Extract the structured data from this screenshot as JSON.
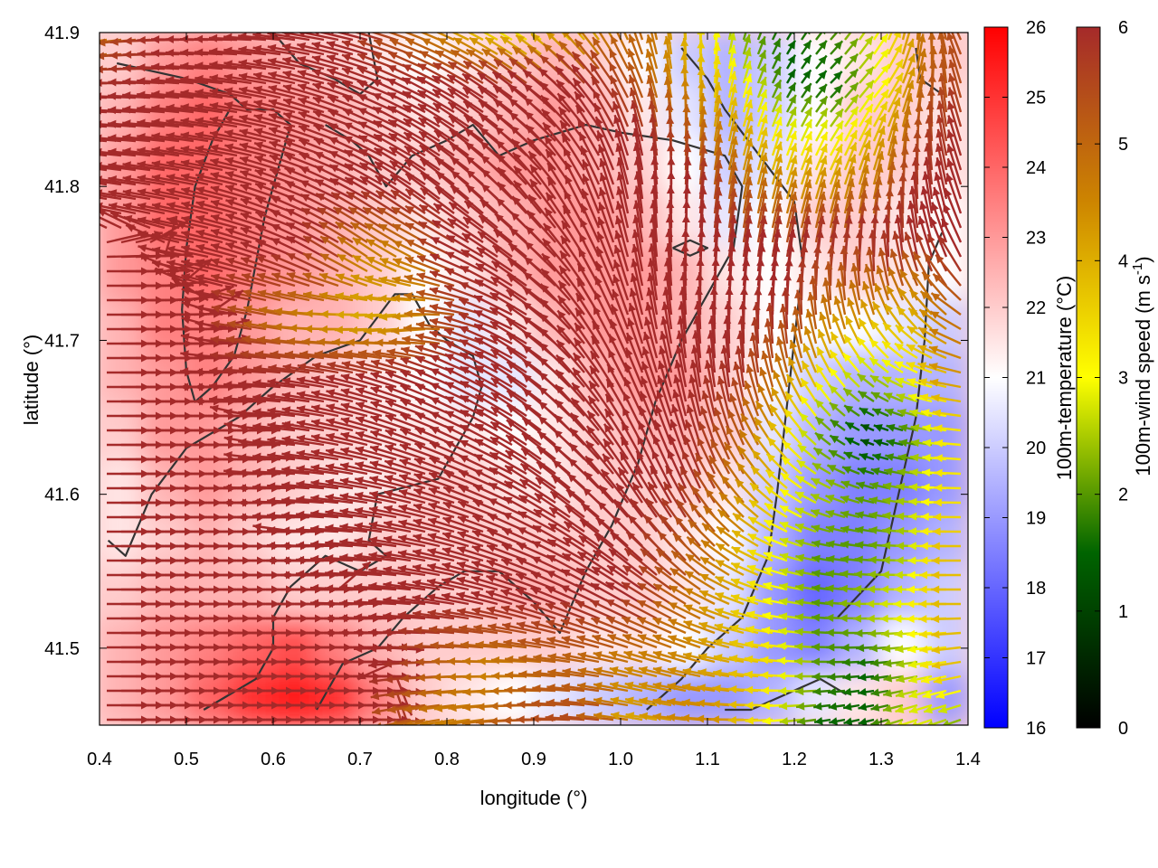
{
  "chart_data": {
    "type": "heatmap",
    "title": "",
    "xlabel": "longitude (°)",
    "ylabel": "latitude (°)",
    "xlim": [
      0.4,
      1.4
    ],
    "ylim": [
      41.45,
      41.9
    ],
    "xticks": [
      "0.4",
      "0.5",
      "0.6",
      "0.7",
      "0.8",
      "0.9",
      "1.0",
      "1.1",
      "1.2",
      "1.3",
      "1.4"
    ],
    "yticks": [
      "41.5",
      "41.6",
      "41.7",
      "41.8",
      "41.9"
    ],
    "grid": false,
    "temperature_colorbar": {
      "label": "100m-temperature (°C)",
      "range": [
        16,
        26
      ],
      "ticks": [
        "16",
        "17",
        "18",
        "19",
        "20",
        "21",
        "22",
        "23",
        "24",
        "25",
        "26"
      ],
      "colors": [
        "#0000ff",
        "#ffffff",
        "#ff0000"
      ]
    },
    "wind_colorbar": {
      "label_main": "100m-wind speed (m s",
      "label_sup": "-1",
      "label_end": ")",
      "range": [
        0,
        6
      ],
      "ticks": [
        "0",
        "1",
        "2",
        "3",
        "4",
        "5",
        "6"
      ],
      "colors": [
        "#000000",
        "#006400",
        "#ffff00",
        "#cd8500",
        "#a52a2a"
      ]
    },
    "temperature_field": [
      [
        22,
        23,
        23.5,
        23,
        22.5,
        22,
        21.5,
        21,
        21.5,
        22,
        22.5,
        22,
        21,
        20,
        19.5,
        20,
        21,
        21.5,
        22,
        22
      ],
      [
        22.5,
        23.5,
        24,
        23.5,
        23,
        22.5,
        22,
        21.5,
        22,
        22.5,
        23,
        22.5,
        21.5,
        20.5,
        19.5,
        20,
        21,
        22,
        22,
        21.5
      ],
      [
        23,
        24,
        24,
        23.5,
        23,
        22.5,
        22,
        22,
        22.5,
        23,
        23,
        22.5,
        22,
        21,
        20,
        20.5,
        21.5,
        22,
        22,
        21.5
      ],
      [
        23,
        24,
        24,
        23.5,
        23,
        22.5,
        22,
        21.5,
        22,
        22.5,
        23,
        23,
        22.5,
        21.5,
        20.5,
        21,
        22,
        22,
        21.5,
        21
      ],
      [
        23,
        23.5,
        24,
        23.5,
        23,
        22.5,
        22,
        21,
        21.5,
        22.5,
        23,
        23,
        23,
        22.5,
        21.5,
        21,
        21.5,
        22,
        21.5,
        21
      ],
      [
        22.5,
        23.5,
        23.5,
        23,
        22.5,
        22.5,
        22,
        21,
        20.5,
        21.5,
        22.5,
        23,
        23,
        22.5,
        22,
        21,
        21,
        21,
        20.5,
        20
      ],
      [
        22.5,
        23,
        23.5,
        23,
        22.5,
        22,
        21.5,
        21,
        20.5,
        20.5,
        21.5,
        22.5,
        23,
        23,
        22,
        21,
        20,
        19.5,
        19.5,
        19.5
      ],
      [
        22,
        23,
        23,
        22.5,
        22,
        22,
        21.5,
        21.5,
        21.5,
        21,
        21.5,
        22,
        22.5,
        22.5,
        22,
        20.5,
        19.5,
        19,
        19,
        19
      ],
      [
        21.5,
        22.5,
        23,
        22.5,
        22,
        21.5,
        21.5,
        22,
        22,
        21.5,
        21.5,
        22,
        22,
        22,
        21.5,
        20,
        19,
        18.5,
        18.5,
        19
      ],
      [
        21.5,
        22,
        22.5,
        22,
        21.5,
        21.5,
        22,
        22,
        22,
        22,
        22,
        22,
        22,
        21.5,
        21,
        19.5,
        18.5,
        18.5,
        19,
        19.5
      ],
      [
        22,
        22.5,
        22.5,
        22.5,
        22,
        22,
        22,
        22,
        22,
        22.5,
        22.5,
        22,
        22,
        21.5,
        20.5,
        19,
        18,
        18.5,
        19.5,
        20
      ],
      [
        22.5,
        23,
        23.5,
        24,
        24.5,
        23.5,
        22.5,
        22,
        22,
        22,
        22,
        21.5,
        21.5,
        21,
        20,
        19,
        18.5,
        19.5,
        21,
        20
      ],
      [
        22.5,
        23,
        24,
        25,
        25.5,
        25,
        23.5,
        22,
        21.5,
        21,
        20.5,
        20,
        19.5,
        19,
        19,
        19.5,
        20.5,
        21.5,
        22,
        19
      ]
    ],
    "contours": [
      [
        [
          0.42,
          41.88
        ],
        [
          0.5,
          41.87
        ],
        [
          0.55,
          41.86
        ],
        [
          0.57,
          41.85
        ],
        [
          0.6,
          41.85
        ],
        [
          0.62,
          41.84
        ],
        [
          0.61,
          41.82
        ],
        [
          0.6,
          41.8
        ],
        [
          0.59,
          41.78
        ],
        [
          0.58,
          41.75
        ],
        [
          0.57,
          41.72
        ],
        [
          0.555,
          41.69
        ],
        [
          0.53,
          41.67
        ],
        [
          0.51,
          41.66
        ],
        [
          0.5,
          41.68
        ],
        [
          0.495,
          41.72
        ],
        [
          0.5,
          41.76
        ],
        [
          0.51,
          41.8
        ],
        [
          0.53,
          41.83
        ],
        [
          0.55,
          41.85
        ]
      ],
      [
        [
          0.41,
          41.57
        ],
        [
          0.43,
          41.56
        ],
        [
          0.46,
          41.6
        ],
        [
          0.5,
          41.63
        ],
        [
          0.56,
          41.65
        ],
        [
          0.6,
          41.67
        ],
        [
          0.65,
          41.69
        ],
        [
          0.7,
          41.7
        ],
        [
          0.74,
          41.73
        ],
        [
          0.76,
          41.73
        ],
        [
          0.78,
          41.71
        ],
        [
          0.8,
          41.7
        ],
        [
          0.83,
          41.69
        ],
        [
          0.84,
          41.67
        ],
        [
          0.83,
          41.65
        ],
        [
          0.81,
          41.63
        ],
        [
          0.79,
          41.61
        ],
        [
          0.72,
          41.6
        ],
        [
          0.71,
          41.57
        ],
        [
          0.73,
          41.56
        ],
        [
          0.7,
          41.55
        ],
        [
          0.66,
          41.56
        ],
        [
          0.62,
          41.54
        ],
        [
          0.6,
          41.52
        ],
        [
          0.6,
          41.5
        ],
        [
          0.58,
          41.48
        ],
        [
          0.55,
          41.47
        ],
        [
          0.52,
          41.46
        ]
      ],
      [
        [
          0.6,
          41.9
        ],
        [
          0.63,
          41.88
        ],
        [
          0.67,
          41.87
        ],
        [
          0.7,
          41.86
        ],
        [
          0.72,
          41.87
        ],
        [
          0.71,
          41.9
        ]
      ],
      [
        [
          0.65,
          41.46
        ],
        [
          0.68,
          41.49
        ],
        [
          0.72,
          41.5
        ],
        [
          0.75,
          41.52
        ],
        [
          0.79,
          41.54
        ],
        [
          0.82,
          41.55
        ],
        [
          0.86,
          41.55
        ],
        [
          0.9,
          41.53
        ],
        [
          0.93,
          41.51
        ],
        [
          0.96,
          41.55
        ],
        [
          0.99,
          41.58
        ],
        [
          1.02,
          41.62
        ],
        [
          1.04,
          41.66
        ],
        [
          1.07,
          41.7
        ],
        [
          1.1,
          41.73
        ],
        [
          1.13,
          41.76
        ],
        [
          1.14,
          41.8
        ],
        [
          1.12,
          41.82
        ],
        [
          1.06,
          41.83
        ],
        [
          1.0,
          41.835
        ],
        [
          0.96,
          41.84
        ],
        [
          0.9,
          41.83
        ],
        [
          0.86,
          41.82
        ],
        [
          0.83,
          41.84
        ],
        [
          0.8,
          41.83
        ],
        [
          0.76,
          41.82
        ],
        [
          0.73,
          41.8
        ],
        [
          0.71,
          41.82
        ],
        [
          0.69,
          41.83
        ],
        [
          0.66,
          41.84
        ]
      ],
      [
        [
          1.06,
          41.76
        ],
        [
          1.08,
          41.765
        ],
        [
          1.1,
          41.76
        ],
        [
          1.08,
          41.755
        ],
        [
          1.06,
          41.76
        ]
      ],
      [
        [
          1.03,
          41.46
        ],
        [
          1.07,
          41.48
        ],
        [
          1.1,
          41.5
        ],
        [
          1.14,
          41.52
        ],
        [
          1.17,
          41.56
        ],
        [
          1.18,
          41.6
        ],
        [
          1.19,
          41.65
        ],
        [
          1.2,
          41.7
        ],
        [
          1.21,
          41.75
        ],
        [
          1.2,
          41.79
        ],
        [
          1.16,
          41.82
        ],
        [
          1.12,
          41.85
        ],
        [
          1.1,
          41.87
        ],
        [
          1.07,
          41.89
        ]
      ],
      [
        [
          1.26,
          41.47
        ],
        [
          1.23,
          41.48
        ],
        [
          1.19,
          41.47
        ],
        [
          1.15,
          41.46
        ],
        [
          1.12,
          41.46
        ]
      ],
      [
        [
          1.25,
          41.52
        ],
        [
          1.3,
          41.55
        ],
        [
          1.32,
          41.6
        ],
        [
          1.34,
          41.65
        ],
        [
          1.35,
          41.7
        ],
        [
          1.355,
          41.75
        ],
        [
          1.37,
          41.77
        ]
      ],
      [
        [
          1.34,
          41.89
        ],
        [
          1.345,
          41.87
        ],
        [
          1.37,
          41.86
        ]
      ]
    ],
    "wind_field": {
      "speed": [
        [
          4.5,
          5.5,
          6,
          6,
          6,
          6,
          6,
          5,
          4,
          3,
          3,
          4,
          5,
          3.5,
          2,
          1.5,
          2,
          3,
          5,
          5.5
        ],
        [
          6,
          6,
          6,
          6,
          6,
          6,
          6,
          6,
          6,
          6,
          6,
          6,
          5,
          4,
          3,
          1.5,
          1.5,
          3,
          5,
          5.5
        ],
        [
          6,
          6,
          6,
          6,
          6,
          6,
          6,
          6,
          6,
          6,
          6,
          6,
          6,
          5,
          4,
          3,
          3,
          4,
          5.5,
          6
        ],
        [
          6,
          6,
          6,
          6,
          6,
          6,
          6,
          6,
          6,
          6,
          6,
          6,
          6,
          6,
          5,
          4.5,
          4.5,
          5,
          6,
          6
        ],
        [
          6,
          6,
          6,
          6,
          6,
          6,
          4.5,
          4.5,
          6,
          6,
          6,
          6,
          6,
          6,
          6,
          6,
          6,
          6,
          6,
          6
        ],
        [
          6,
          6,
          6,
          6,
          5,
          4.5,
          4,
          4.2,
          5.5,
          6,
          6,
          6,
          6,
          6,
          6,
          6,
          5,
          4.5,
          4,
          5
        ],
        [
          6,
          6,
          6,
          6,
          6,
          6,
          6,
          6,
          6,
          6,
          6,
          6,
          6,
          6,
          6,
          5,
          3.5,
          2.5,
          3,
          4.5
        ],
        [
          6,
          6,
          6,
          6,
          6,
          6,
          6,
          6,
          6,
          6,
          6,
          6,
          6,
          6,
          5.5,
          4,
          2,
          1,
          2,
          3.5
        ],
        [
          6,
          6,
          6,
          6,
          6,
          6,
          6,
          6,
          6,
          6,
          6,
          6,
          6,
          6,
          5,
          3.5,
          2.5,
          2,
          2.5,
          3.5
        ],
        [
          6,
          6,
          6,
          6,
          6,
          6,
          6,
          6,
          6,
          6,
          6,
          6,
          6,
          5.5,
          4.5,
          3,
          2,
          2,
          2.5,
          4
        ],
        [
          6,
          6,
          6,
          6,
          6,
          6,
          6,
          6,
          6,
          6,
          6,
          6,
          6,
          5,
          4,
          3,
          2,
          2.5,
          3,
          4
        ],
        [
          6,
          6,
          6,
          6,
          6,
          6,
          6,
          6,
          5,
          4.5,
          5,
          5,
          4.5,
          4.5,
          4,
          3.5,
          2,
          1.5,
          2.5,
          4
        ],
        [
          6,
          6,
          6,
          6,
          6,
          6,
          6,
          5,
          4.5,
          5,
          5.5,
          5.5,
          4,
          4.5,
          4.5,
          3,
          1.5,
          1.5,
          3,
          2
        ]
      ],
      "direction_deg": [
        [
          170,
          175,
          180,
          180,
          185,
          190,
          195,
          200,
          205,
          210,
          220,
          235,
          255,
          270,
          285,
          300,
          310,
          300,
          270,
          240
        ],
        [
          180,
          182,
          185,
          188,
          192,
          196,
          200,
          205,
          210,
          215,
          220,
          230,
          250,
          270,
          285,
          300,
          315,
          310,
          280,
          250
        ],
        [
          185,
          185,
          188,
          190,
          195,
          200,
          205,
          210,
          215,
          220,
          225,
          240,
          260,
          275,
          285,
          290,
          300,
          290,
          270,
          250
        ],
        [
          190,
          190,
          192,
          195,
          200,
          205,
          210,
          215,
          220,
          225,
          235,
          250,
          265,
          275,
          280,
          285,
          285,
          280,
          265,
          250
        ],
        [
          0,
          0,
          190,
          195,
          200,
          210,
          215,
          205,
          205,
          215,
          225,
          245,
          262,
          272,
          278,
          280,
          278,
          270,
          255,
          240
        ],
        [
          0,
          0,
          0,
          190,
          190,
          180,
          175,
          170,
          190,
          205,
          220,
          240,
          258,
          268,
          272,
          270,
          260,
          250,
          230,
          210
        ],
        [
          0,
          0,
          0,
          180,
          185,
          190,
          195,
          200,
          205,
          210,
          220,
          235,
          250,
          262,
          265,
          255,
          240,
          220,
          200,
          190
        ],
        [
          0,
          0,
          0,
          0,
          185,
          190,
          195,
          200,
          205,
          210,
          220,
          230,
          245,
          255,
          250,
          235,
          220,
          200,
          190,
          185
        ],
        [
          0,
          0,
          0,
          0,
          180,
          185,
          190,
          195,
          200,
          205,
          215,
          225,
          240,
          245,
          235,
          220,
          205,
          195,
          185,
          180
        ],
        [
          0,
          0,
          0,
          0,
          0,
          180,
          185,
          190,
          195,
          200,
          205,
          215,
          225,
          230,
          215,
          200,
          190,
          185,
          180,
          180
        ],
        [
          0,
          0,
          0,
          0,
          0,
          0,
          180,
          185,
          190,
          195,
          200,
          205,
          210,
          210,
          200,
          190,
          185,
          180,
          180,
          180
        ],
        [
          0,
          0,
          0,
          0,
          0,
          0,
          0,
          175,
          180,
          180,
          185,
          190,
          195,
          195,
          190,
          185,
          180,
          175,
          170,
          170
        ],
        [
          0,
          0,
          0,
          0,
          0,
          0,
          0,
          170,
          170,
          175,
          180,
          185,
          190,
          185,
          180,
          175,
          170,
          165,
          160,
          160
        ]
      ]
    }
  }
}
